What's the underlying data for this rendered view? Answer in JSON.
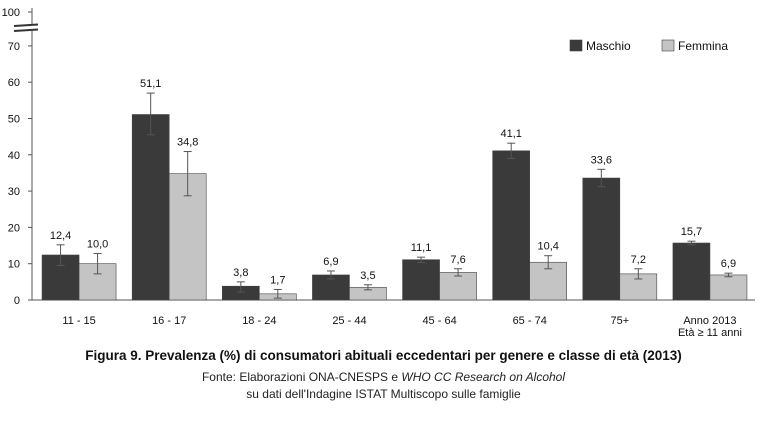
{
  "chart_data": {
    "type": "bar",
    "categories": [
      "11 - 15",
      "16 - 17",
      "18 - 24",
      "25 - 44",
      "45 - 64",
      "65 - 74",
      "75+",
      "Anno 2013\nEtà ≥ 11 anni"
    ],
    "series": [
      {
        "name": "Maschio",
        "color": "#3a3a3a",
        "values": [
          12.4,
          51.1,
          3.8,
          6.9,
          11.1,
          41.1,
          33.6,
          15.7
        ],
        "labels": [
          "12,4",
          "51,1",
          "3,8",
          "6,9",
          "11,1",
          "41,1",
          "33,6",
          "15,7"
        ],
        "error_low": [
          9.5,
          45.5,
          2.2,
          5.8,
          10.3,
          39.0,
          31.2,
          15.2
        ],
        "error_high": [
          15.2,
          57.0,
          5.0,
          8.0,
          11.8,
          43.2,
          36.0,
          16.2
        ]
      },
      {
        "name": "Femmina",
        "color": "#c4c4c4",
        "values": [
          10.0,
          34.8,
          1.7,
          3.5,
          7.6,
          10.4,
          7.2,
          6.9
        ],
        "labels": [
          "10,0",
          "34,8",
          "1,7",
          "3,5",
          "7,6",
          "10,4",
          "7,2",
          "6,9"
        ],
        "error_low": [
          7.2,
          28.7,
          0.5,
          2.8,
          6.6,
          8.6,
          5.8,
          6.4
        ],
        "error_high": [
          12.8,
          40.9,
          2.9,
          4.2,
          8.6,
          12.2,
          8.6,
          7.4
        ]
      }
    ],
    "y_ticks": [
      0,
      10,
      20,
      30,
      40,
      50,
      60,
      70
    ],
    "y_top_label": "100",
    "ylim": [
      0,
      70
    ],
    "axis_break": true,
    "legend_position": "top-right",
    "grid": false,
    "title": "",
    "xlabel": "",
    "ylabel": ""
  },
  "caption": {
    "title": "Figura 9. Prevalenza (%) di consumatori abituali eccedentari per genere e classe di età (2013)",
    "source_prefix": "Fonte: Elaborazioni ONA-CNESPS e ",
    "source_italic": "WHO CC Research on Alcohol",
    "source_line2": "su dati dell'Indagine ISTAT Multiscopo sulle famiglie"
  }
}
